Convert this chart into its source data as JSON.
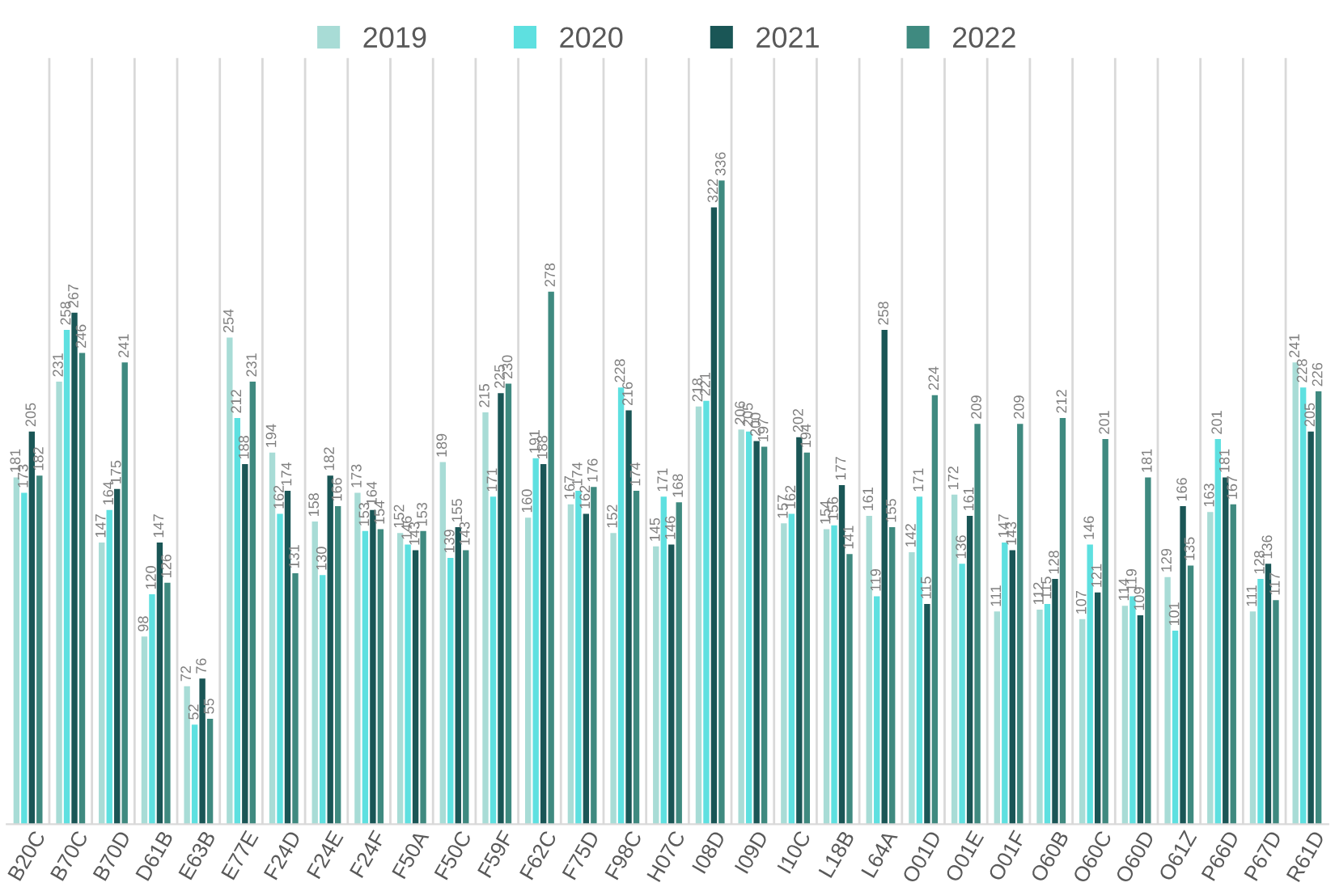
{
  "chart_data": {
    "type": "bar",
    "categories": [
      "B20C",
      "B70C",
      "B70D",
      "D61B",
      "E63B",
      "E77E",
      "F24D",
      "F24E",
      "F24F",
      "F50A",
      "F50C",
      "F59F",
      "F62C",
      "F75D",
      "F98C",
      "H07C",
      "I08D",
      "I09D",
      "I10C",
      "L18B",
      "L64A",
      "O01D",
      "O01E",
      "O01F",
      "O60B",
      "O60C",
      "O60D",
      "O61Z",
      "P66D",
      "P67D",
      "R61D"
    ],
    "series": [
      {
        "name": "2019",
        "color": "#a8dcd6",
        "values": [
          181,
          231,
          147,
          98,
          72,
          254,
          194,
          158,
          173,
          152,
          189,
          215,
          160,
          167,
          152,
          145,
          218,
          206,
          157,
          154,
          161,
          142,
          172,
          111,
          112,
          107,
          114,
          129,
          163,
          111,
          241
        ]
      },
      {
        "name": "2020",
        "color": "#5ee0e0",
        "values": [
          173,
          258,
          164,
          120,
          52,
          212,
          162,
          130,
          153,
          146,
          139,
          171,
          191,
          174,
          228,
          171,
          221,
          205,
          162,
          156,
          119,
          171,
          136,
          147,
          115,
          146,
          119,
          101,
          201,
          128,
          228
        ]
      },
      {
        "name": "2021",
        "color": "#1a5656",
        "values": [
          205,
          267,
          175,
          147,
          76,
          188,
          174,
          182,
          164,
          143,
          155,
          225,
          188,
          162,
          216,
          146,
          322,
          200,
          202,
          177,
          258,
          115,
          161,
          143,
          128,
          121,
          109,
          166,
          181,
          136,
          205
        ]
      },
      {
        "name": "2022",
        "color": "#3f8a80",
        "values": [
          182,
          246,
          241,
          126,
          55,
          231,
          131,
          166,
          154,
          153,
          143,
          230,
          278,
          176,
          174,
          168,
          336,
          197,
          194,
          141,
          155,
          224,
          209,
          209,
          212,
          201,
          181,
          135,
          167,
          117,
          226
        ]
      }
    ],
    "ylim": [
      0,
      400
    ],
    "data_labels": true,
    "grid": "x",
    "legend": "top",
    "tick_labels": "x"
  }
}
